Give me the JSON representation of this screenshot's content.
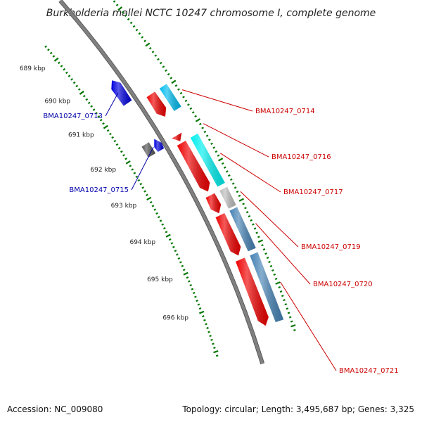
{
  "title": "Burkholderia mallei NCTC 10247 chromosome I, complete genome",
  "footer": {
    "accession": "Accession: NC_009080",
    "summary": "Topology: circular; Length: 3,495,687 bp; Genes: 3,325"
  },
  "ticks": [
    {
      "label": "689 kbp",
      "kbp": 689
    },
    {
      "label": "690 kbp",
      "kbp": 690
    },
    {
      "label": "691 kbp",
      "kbp": 691
    },
    {
      "label": "692 kbp",
      "kbp": 692
    },
    {
      "label": "693 kbp",
      "kbp": 693
    },
    {
      "label": "694 kbp",
      "kbp": 694
    },
    {
      "label": "695 kbp",
      "kbp": 695
    },
    {
      "label": "696 kbp",
      "kbp": 696
    }
  ],
  "genes": [
    {
      "id": "g0713",
      "label": "BMA10247_0713",
      "strand": "reverse",
      "color": "#0000dd",
      "start": 690.18,
      "end": 690.82
    },
    {
      "id": "g0714",
      "label": "BMA10247_0714",
      "strand": "forward",
      "color": "#ee0000",
      "start": 690.95,
      "end": 691.55
    },
    {
      "id": "g0715",
      "label": "BMA10247_0715",
      "strand": "reverse",
      "color": "#0000dd",
      "start": 691.85,
      "end": 692.15
    },
    {
      "id": "g0716",
      "label": "BMA10247_0716",
      "strand": "forward",
      "color": "#ee0000",
      "start": 692.05,
      "end": 692.2
    },
    {
      "id": "g0717",
      "label": "BMA10247_0717",
      "strand": "forward",
      "color": "#ee0000",
      "start": 692.25,
      "end": 693.5
    },
    {
      "id": "g0719",
      "label": "BMA10247_0719",
      "strand": "forward",
      "color": "#ee0000",
      "start": 693.6,
      "end": 694.05
    },
    {
      "id": "g0720",
      "label": "BMA10247_0720",
      "strand": "forward",
      "color": "#ee0000",
      "start": 694.1,
      "end": 695.1
    },
    {
      "id": "g0721",
      "label": "BMA10247_0721",
      "strand": "forward",
      "color": "#ee0000",
      "start": 695.2,
      "end": 696.8
    }
  ],
  "features": [
    {
      "id": "f-grey-reverse",
      "color": "#555555",
      "ring": "inner",
      "start": 691.85,
      "end": 692.15
    },
    {
      "id": "f-cyan-1",
      "color": "#00bbee",
      "ring": "outer",
      "start": 690.95,
      "end": 691.55
    },
    {
      "id": "f-cyan-2",
      "color": "#00eeee",
      "ring": "outer",
      "start": 692.25,
      "end": 693.5
    },
    {
      "id": "f-light-grey",
      "color": "#bbbbbb",
      "ring": "outer",
      "start": 693.6,
      "end": 694.05
    },
    {
      "id": "f-steel-1",
      "color": "#4682b4",
      "ring": "outer",
      "start": 694.1,
      "end": 695.1
    },
    {
      "id": "f-steel-2",
      "color": "#4682b4",
      "ring": "outer",
      "start": 695.2,
      "end": 696.8
    }
  ],
  "colors": {
    "backbone": "#808080",
    "tick_green": "#007700",
    "reverse_label": "#0000aa",
    "forward_label": "#cc0000"
  }
}
